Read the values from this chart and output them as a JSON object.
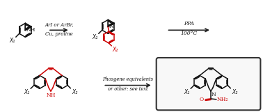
{
  "bg_color": "#ffffff",
  "black": "#111111",
  "red": "#cc0000",
  "arrow_color": "#222222",
  "figsize": [
    3.78,
    1.61
  ],
  "dpi": 100,
  "arrow1_line1": "ArI or ArBr,",
  "arrow1_line2": "Cu, proline",
  "arrow2_line1": "PPA",
  "arrow2_line2": "100°C",
  "arrow3_line1": "Phosgene equivalents",
  "arrow3_line2": "or other: see text",
  "x1_label": "X₁",
  "x2_label": "X₂",
  "nh2_label": "NH₂",
  "o_label": "O"
}
